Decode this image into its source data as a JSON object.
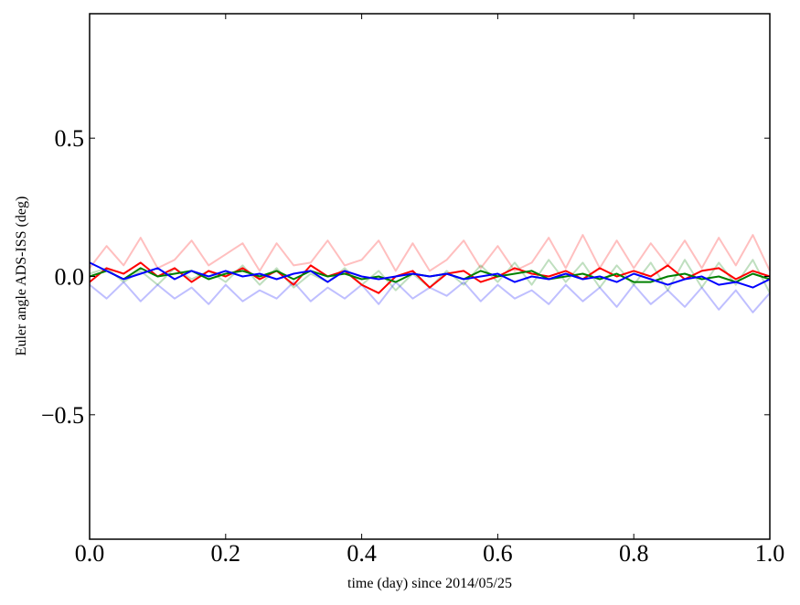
{
  "chart_data": {
    "type": "line",
    "title": "",
    "xlabel": "time (day) since 2014/05/25",
    "ylabel": "Euler angle ADS-ISS (deg)",
    "xlim": [
      0.0,
      1.0
    ],
    "ylim": [
      -0.95,
      0.95
    ],
    "x_ticks": [
      0.0,
      0.2,
      0.4,
      0.6,
      0.8,
      1.0
    ],
    "x_tick_labels": [
      "0.0",
      "0.2",
      "0.4",
      "0.6",
      "0.8",
      "1.0"
    ],
    "y_ticks": [
      -0.5,
      0.0,
      0.5
    ],
    "y_tick_labels": [
      "−0.5",
      "0.0",
      "0.5"
    ],
    "grid": false,
    "legend": "none",
    "x": [
      0.0,
      0.025,
      0.05,
      0.075,
      0.1,
      0.125,
      0.15,
      0.175,
      0.2,
      0.225,
      0.25,
      0.275,
      0.3,
      0.325,
      0.35,
      0.375,
      0.4,
      0.425,
      0.45,
      0.475,
      0.5,
      0.525,
      0.55,
      0.575,
      0.6,
      0.625,
      0.65,
      0.675,
      0.7,
      0.725,
      0.75,
      0.775,
      0.8,
      0.825,
      0.85,
      0.875,
      0.9,
      0.925,
      0.95,
      0.975,
      1.0
    ],
    "series": [
      {
        "color": "#ff0000",
        "opacity": 0.25,
        "values": [
          0.03,
          0.11,
          0.04,
          0.14,
          0.03,
          0.06,
          0.13,
          0.04,
          0.08,
          0.12,
          0.02,
          0.12,
          0.04,
          0.05,
          0.13,
          0.04,
          0.06,
          0.13,
          0.02,
          0.12,
          0.02,
          0.06,
          0.13,
          0.03,
          0.11,
          0.02,
          0.05,
          0.14,
          0.03,
          0.15,
          0.03,
          0.13,
          0.03,
          0.12,
          0.04,
          0.13,
          0.03,
          0.14,
          0.04,
          0.15,
          0.02
        ]
      },
      {
        "color": "#008000",
        "opacity": 0.25,
        "values": [
          0.01,
          0.03,
          -0.02,
          0.02,
          -0.03,
          0.03,
          -0.01,
          0.02,
          -0.02,
          0.04,
          -0.03,
          0.03,
          -0.04,
          0.01,
          -0.02,
          0.03,
          -0.03,
          0.02,
          -0.05,
          0.01,
          -0.04,
          0.02,
          -0.03,
          0.04,
          -0.02,
          0.05,
          -0.03,
          0.06,
          -0.02,
          0.05,
          -0.04,
          0.04,
          -0.03,
          0.05,
          -0.05,
          0.06,
          -0.04,
          0.05,
          -0.03,
          0.06,
          -0.06
        ]
      },
      {
        "color": "#0000ff",
        "opacity": 0.25,
        "values": [
          -0.03,
          -0.08,
          -0.02,
          -0.09,
          -0.03,
          -0.08,
          -0.04,
          -0.1,
          -0.03,
          -0.09,
          -0.05,
          -0.08,
          -0.02,
          -0.09,
          -0.04,
          -0.08,
          -0.03,
          -0.1,
          -0.02,
          -0.08,
          -0.04,
          -0.07,
          -0.02,
          -0.09,
          -0.03,
          -0.08,
          -0.05,
          -0.1,
          -0.03,
          -0.09,
          -0.04,
          -0.11,
          -0.03,
          -0.1,
          -0.05,
          -0.11,
          -0.04,
          -0.12,
          -0.05,
          -0.13,
          -0.06
        ]
      },
      {
        "color": "#ff0000",
        "opacity": 1.0,
        "values": [
          -0.02,
          0.03,
          0.01,
          0.05,
          0.0,
          0.03,
          -0.02,
          0.02,
          0.0,
          0.03,
          -0.01,
          0.02,
          -0.03,
          0.04,
          0.0,
          0.02,
          -0.03,
          -0.06,
          0.0,
          0.02,
          -0.04,
          0.01,
          0.02,
          -0.02,
          0.0,
          0.03,
          0.01,
          0.0,
          0.02,
          -0.01,
          0.03,
          0.0,
          0.02,
          0.0,
          0.04,
          -0.01,
          0.02,
          0.03,
          -0.01,
          0.02,
          0.0
        ]
      },
      {
        "color": "#008000",
        "opacity": 1.0,
        "values": [
          0.0,
          0.02,
          -0.01,
          0.03,
          0.0,
          0.01,
          0.02,
          -0.01,
          0.01,
          0.02,
          0.0,
          0.02,
          -0.01,
          0.02,
          0.0,
          0.01,
          -0.01,
          0.0,
          -0.02,
          0.01,
          0.0,
          0.01,
          -0.01,
          0.02,
          0.0,
          0.01,
          0.02,
          -0.01,
          0.0,
          0.01,
          -0.01,
          0.01,
          -0.02,
          -0.02,
          0.0,
          0.01,
          -0.01,
          0.0,
          -0.02,
          0.01,
          -0.01
        ]
      },
      {
        "color": "#0000ff",
        "opacity": 1.0,
        "values": [
          0.05,
          0.02,
          -0.01,
          0.01,
          0.03,
          -0.01,
          0.02,
          0.0,
          0.02,
          0.0,
          0.01,
          -0.01,
          0.01,
          0.02,
          -0.02,
          0.02,
          0.0,
          -0.01,
          0.0,
          0.01,
          0.0,
          0.01,
          -0.01,
          0.0,
          0.01,
          -0.02,
          0.0,
          -0.01,
          0.01,
          -0.01,
          0.0,
          -0.02,
          0.01,
          -0.01,
          -0.03,
          -0.01,
          0.0,
          -0.03,
          -0.02,
          -0.04,
          -0.01
        ]
      }
    ]
  }
}
